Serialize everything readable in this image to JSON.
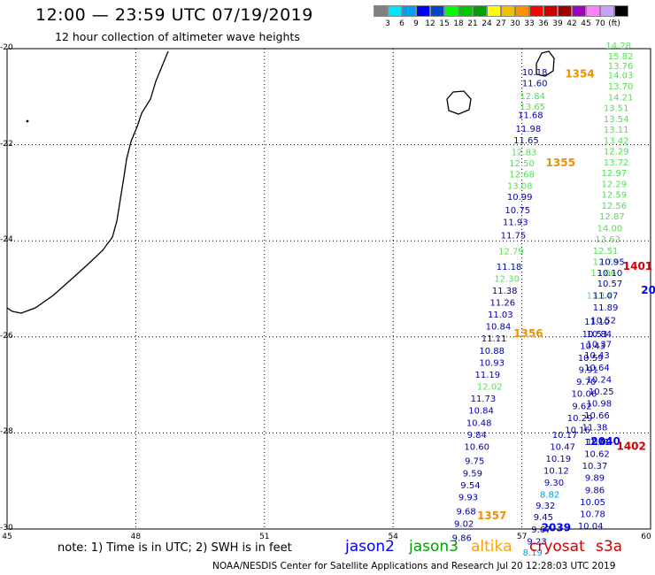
{
  "title": "12:00 — 23:59 UTC 07/19/2019",
  "subtitle": "12 hour collection of altimeter wave heights",
  "note": "note:  1) Time is in UTC;  2) SWH is in feet",
  "credit": "NOAA/NESDIS Center for Satellite Applications and Research    Jul 20 12:28:03 UTC 2019",
  "colorbar": {
    "colors": [
      "#808080",
      "#00e5ff",
      "#00a0f0",
      "#0000ff",
      "#0048c8",
      "#00ff00",
      "#00c800",
      "#00a000",
      "#ffff00",
      "#f0c000",
      "#ff9000",
      "#ff0000",
      "#c80000",
      "#a00000",
      "#a000c0",
      "#ff80ff",
      "#c8a0ff",
      "#000000"
    ],
    "ticks": [
      "3",
      "6",
      "9",
      "12",
      "15",
      "18",
      "21",
      "24",
      "27",
      "30",
      "33",
      "36",
      "39",
      "42",
      "45",
      "70",
      "(ft)"
    ]
  },
  "satellites": [
    {
      "name": "jason2",
      "color": "#0000ff"
    },
    {
      "name": "jason3",
      "color": "#00a000"
    },
    {
      "name": "altika",
      "color": "#ffa000"
    },
    {
      "name": "cryosat",
      "color": "#d00000"
    },
    {
      "name": "s3a",
      "color": "#d00000"
    }
  ],
  "chart_data": {
    "type": "scatter",
    "xlim": [
      45,
      60
    ],
    "ylim": [
      -30,
      -20
    ],
    "x_ticks": [
      "45",
      "48",
      "51",
      "54",
      "57",
      "60"
    ],
    "y_ticks": [
      "-20",
      "-22",
      "-24",
      "-26",
      "-28",
      "-30"
    ],
    "grid": true,
    "tracks": [
      {
        "color": "#0000aa",
        "points": [
          [
            57.3,
            -20.55,
            "10.18"
          ],
          [
            57.3,
            -20.78,
            "11.60"
          ],
          [
            57.2,
            -21.45,
            "11.68"
          ],
          [
            57.15,
            -21.73,
            "11.98"
          ],
          [
            57.1,
            -21.97,
            "11.65"
          ],
          [
            56.95,
            -23.15,
            "10.99"
          ],
          [
            56.9,
            -23.43,
            "10.75"
          ],
          [
            56.85,
            -23.67,
            "11.93"
          ],
          [
            56.8,
            -23.95,
            "11.75"
          ],
          [
            56.7,
            -24.6,
            "11.18"
          ],
          [
            56.6,
            -25.1,
            "11.38"
          ],
          [
            56.55,
            -25.35,
            "11.26"
          ],
          [
            56.5,
            -25.6,
            "11.03"
          ],
          [
            56.45,
            -25.85,
            "10.84"
          ],
          [
            56.35,
            -26.1,
            "11.11"
          ],
          [
            56.3,
            -26.35,
            "10.88"
          ],
          [
            56.3,
            -26.6,
            "10.93"
          ],
          [
            56.2,
            -26.85,
            "11.19"
          ],
          [
            56.1,
            -27.35,
            "11.73"
          ],
          [
            56.05,
            -27.6,
            "10.84"
          ],
          [
            56.0,
            -27.85,
            "10.48"
          ],
          [
            55.95,
            -28.1,
            "9.84"
          ],
          [
            55.95,
            -28.35,
            "10.60"
          ],
          [
            55.9,
            -28.65,
            "9.75"
          ],
          [
            55.85,
            -28.9,
            "9.59"
          ],
          [
            55.8,
            -29.15,
            "9.54"
          ],
          [
            55.75,
            -29.4,
            "9.93"
          ],
          [
            55.7,
            -29.7,
            "9.68"
          ],
          [
            55.65,
            -29.95,
            "9.02"
          ],
          [
            55.6,
            -30.25,
            "9.86"
          ]
        ]
      },
      {
        "color": "#55dd55",
        "points": [
          [
            57.25,
            -21.05,
            "12.84"
          ],
          [
            57.25,
            -21.27,
            "13.65"
          ],
          [
            57.05,
            -22.22,
            "12.83"
          ],
          [
            57.0,
            -22.45,
            "12.50"
          ],
          [
            57.0,
            -22.68,
            "12.68"
          ],
          [
            56.95,
            -22.92,
            "13.08"
          ],
          [
            56.75,
            -24.28,
            "12.79"
          ],
          [
            56.65,
            -24.85,
            "12.30"
          ],
          [
            56.25,
            -27.1,
            "12.02"
          ]
        ]
      },
      {
        "color": "#0000aa",
        "points": [
          [
            58.0,
            -28.1,
            "10.17"
          ],
          [
            57.95,
            -28.35,
            "10.47"
          ],
          [
            57.85,
            -28.6,
            "10.19"
          ],
          [
            57.8,
            -28.85,
            "10.12"
          ],
          [
            57.75,
            -29.1,
            "9.30"
          ],
          [
            57.55,
            -29.58,
            "9.32"
          ],
          [
            57.5,
            -29.82,
            "9.45"
          ],
          [
            57.45,
            -30.07,
            "9.67"
          ],
          [
            57.35,
            -30.32,
            "9.23"
          ]
        ]
      },
      {
        "color": "#00a0f0",
        "points": [
          [
            57.65,
            -29.35,
            "8.82"
          ],
          [
            57.25,
            -30.55,
            "8.19"
          ]
        ]
      },
      {
        "color": "#55dd55",
        "points": [
          [
            59.25,
            -20.0,
            "14.28"
          ],
          [
            59.3,
            -20.22,
            "15.82"
          ],
          [
            59.3,
            -20.42,
            "13.76"
          ],
          [
            59.3,
            -20.62,
            "14.03"
          ],
          [
            59.3,
            -20.85,
            "13.70"
          ],
          [
            59.3,
            -21.08,
            "14.21"
          ],
          [
            59.2,
            -21.3,
            "13.51"
          ],
          [
            59.2,
            -21.53,
            "13.54"
          ],
          [
            59.2,
            -21.75,
            "13.11"
          ],
          [
            59.2,
            -21.98,
            "13.42"
          ],
          [
            59.2,
            -22.2,
            "12.29"
          ],
          [
            59.2,
            -22.43,
            "13.72"
          ],
          [
            59.15,
            -22.65,
            "12.97"
          ],
          [
            59.15,
            -22.88,
            "12.29"
          ],
          [
            59.15,
            -23.1,
            "12.59"
          ],
          [
            59.15,
            -23.33,
            "12.56"
          ],
          [
            59.1,
            -23.55,
            "12.87"
          ],
          [
            59.05,
            -23.8,
            "14.00"
          ],
          [
            59.0,
            -24.03,
            "13.63"
          ],
          [
            58.95,
            -24.27,
            "12.51"
          ],
          [
            58.95,
            -24.5,
            "12.78"
          ],
          [
            58.9,
            -24.73,
            "13.06"
          ],
          [
            58.8,
            -25.2,
            "13.14"
          ]
        ]
      },
      {
        "color": "#0000aa",
        "points": [
          [
            59.1,
            -24.5,
            "10.95"
          ],
          [
            59.05,
            -24.73,
            "10.10"
          ],
          [
            59.05,
            -24.95,
            "10.57"
          ],
          [
            58.95,
            -25.2,
            "11.07"
          ],
          [
            58.95,
            -25.45,
            "11.89"
          ],
          [
            58.75,
            -25.75,
            "11.10"
          ],
          [
            58.7,
            -26.0,
            "10.53"
          ],
          [
            58.65,
            -26.25,
            "10.43"
          ],
          [
            58.6,
            -26.5,
            "10.59"
          ],
          [
            58.55,
            -26.75,
            "9.91"
          ],
          [
            58.5,
            -27.0,
            "9.70"
          ],
          [
            58.45,
            -27.25,
            "10.06"
          ],
          [
            58.4,
            -27.5,
            "9.62"
          ],
          [
            58.35,
            -27.75,
            "10.29"
          ],
          [
            58.3,
            -28.0,
            "10.16"
          ],
          [
            58.8,
            -28.25,
            "10.92"
          ],
          [
            58.75,
            -28.5,
            "10.62"
          ],
          [
            58.7,
            -28.75,
            "10.37"
          ],
          [
            58.7,
            -29.0,
            "9.89"
          ],
          [
            58.7,
            -29.25,
            "9.86"
          ],
          [
            58.65,
            -29.5,
            "10.05"
          ],
          [
            58.65,
            -29.75,
            "10.78"
          ],
          [
            58.6,
            -30.0,
            "10.04"
          ]
        ]
      },
      {
        "color": "#0000aa",
        "points": [
          [
            58.9,
            -25.72,
            "10.52"
          ],
          [
            58.8,
            -26.0,
            "10.84"
          ],
          [
            58.8,
            -26.22,
            "10.37"
          ],
          [
            58.75,
            -26.45,
            "10.43"
          ],
          [
            58.75,
            -26.7,
            "10.64"
          ],
          [
            58.8,
            -26.95,
            "10.24"
          ],
          [
            58.85,
            -27.2,
            "10.25"
          ],
          [
            58.8,
            -27.45,
            "10.98"
          ],
          [
            58.75,
            -27.7,
            "10.66"
          ],
          [
            58.7,
            -27.95,
            "11.38"
          ],
          [
            58.75,
            -28.25,
            "11.71"
          ]
        ]
      }
    ],
    "time_labels": [
      {
        "lon": 58.35,
        "lat": -20.6,
        "text": "1354",
        "color": "#f09000"
      },
      {
        "lon": 57.9,
        "lat": -22.45,
        "text": "1355",
        "color": "#f09000"
      },
      {
        "lon": 57.15,
        "lat": -26.0,
        "text": "1356",
        "color": "#f09000"
      },
      {
        "lon": 56.3,
        "lat": -29.8,
        "text": "1357",
        "color": "#f09000"
      },
      {
        "lon": 58.95,
        "lat": -28.25,
        "text": "2040",
        "color": "#0000ff"
      },
      {
        "lon": 57.8,
        "lat": -30.05,
        "text": "2039",
        "color": "#0000ff"
      },
      {
        "lon": 59.95,
        "lat": -25.1,
        "text": "20",
        "color": "#0000ff"
      },
      {
        "lon": 59.55,
        "lat": -28.35,
        "text": "1402",
        "color": "#d00000"
      },
      {
        "lon": 59.7,
        "lat": -24.6,
        "text": "1401",
        "color": "#d00000"
      }
    ]
  }
}
